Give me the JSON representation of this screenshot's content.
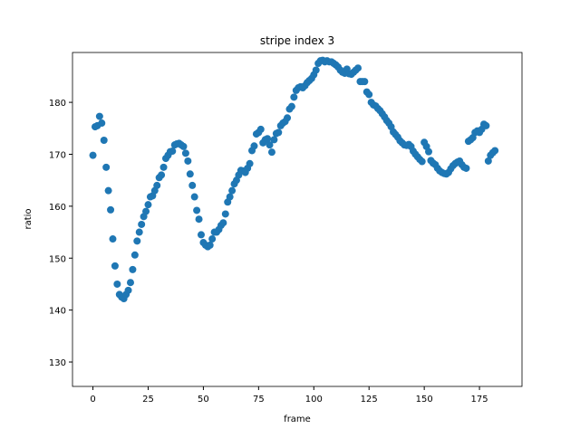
{
  "chart_data": {
    "type": "scatter",
    "title": "stripe index 3",
    "x_label": "frame",
    "y_label": "ratio",
    "series": [
      {
        "color": "#1f77b4",
        "x": [
          0,
          1,
          2,
          3,
          4,
          5,
          6,
          7,
          8,
          9,
          10,
          11,
          12,
          13,
          14,
          15,
          16,
          17,
          18,
          19,
          20,
          21,
          22,
          23,
          24,
          25,
          26,
          27,
          28,
          29,
          30,
          31,
          32,
          33,
          34,
          35,
          36,
          37,
          38,
          39,
          40,
          41,
          42,
          43,
          44,
          45,
          46,
          47,
          48,
          49,
          50,
          51,
          52,
          53,
          54,
          55,
          56,
          57,
          58,
          59,
          60,
          61,
          62,
          63,
          64,
          65,
          66,
          67,
          68,
          69,
          70,
          71,
          72,
          73,
          74,
          75,
          76,
          77,
          78,
          79,
          80,
          81,
          82,
          83,
          84,
          85,
          86,
          87,
          88,
          89,
          90,
          91,
          92,
          93,
          94,
          95,
          96,
          97,
          98,
          99,
          100,
          101,
          102,
          103,
          104,
          105,
          106,
          107,
          108,
          109,
          110,
          111,
          112,
          113,
          114,
          115,
          116,
          117,
          118,
          119,
          120,
          121,
          122,
          123,
          124,
          125,
          126,
          127,
          128,
          129,
          130,
          131,
          132,
          133,
          134,
          135,
          136,
          137,
          138,
          139,
          140,
          141,
          142,
          143,
          144,
          145,
          146,
          147,
          148,
          149,
          150,
          151,
          152,
          153,
          154,
          155,
          156,
          157,
          158,
          159,
          160,
          161,
          162,
          163,
          164,
          165,
          166,
          167,
          168,
          169,
          170,
          171,
          172,
          173,
          174,
          175,
          176,
          177,
          178,
          179,
          180,
          181,
          182
        ],
        "values": [
          169.8,
          175.3,
          175.5,
          177.3,
          176,
          172.7,
          167.5,
          163,
          159.3,
          153.7,
          148.5,
          145,
          143,
          142.5,
          142.2,
          143,
          143.8,
          145.3,
          147.8,
          150.6,
          153.3,
          155,
          156.5,
          158,
          159,
          160.3,
          161.8,
          162,
          163,
          164,
          165.5,
          166,
          167.5,
          169.2,
          169.8,
          170.5,
          170.6,
          171.8,
          172,
          172.1,
          171.8,
          171.5,
          170.2,
          168.7,
          166.2,
          164,
          161.8,
          159.2,
          157.5,
          154.5,
          153,
          152.5,
          152.2,
          152.5,
          153.7,
          155,
          155,
          155.5,
          156.3,
          156.8,
          158.5,
          160.8,
          161.8,
          163,
          164.3,
          165,
          166,
          166.9,
          166.8,
          166.5,
          167.3,
          168.2,
          170.7,
          171.6,
          173.9,
          174.2,
          174.8,
          172.2,
          172.8,
          173,
          171.8,
          170.4,
          172.8,
          174,
          174.2,
          175.5,
          176,
          176.3,
          177,
          178.7,
          179.2,
          181,
          182.3,
          182.8,
          183,
          182.8,
          183.2,
          183.8,
          184.2,
          184.6,
          185.3,
          186.2,
          187.5,
          188,
          188.1,
          187.8,
          188,
          187.8,
          187.8,
          187.5,
          187.2,
          186.8,
          186.2,
          185.8,
          185.6,
          186.4,
          185.5,
          185.4,
          185.8,
          186.2,
          186.6,
          184,
          184,
          184,
          182,
          181.5,
          180,
          179.5,
          179.3,
          178.8,
          178.4,
          177.8,
          177.2,
          176.5,
          176,
          175.3,
          174.3,
          173.8,
          173.3,
          172.6,
          172.2,
          171.8,
          171.7,
          171.9,
          171.5,
          170.6,
          170,
          169.5,
          169,
          168.6,
          172.3,
          171.5,
          170.5,
          168.8,
          168.3,
          168,
          167.3,
          166.8,
          166.5,
          166.3,
          166.2,
          166.5,
          167.2,
          167.8,
          168.2,
          168.5,
          168.7,
          168,
          167.5,
          167.3,
          172.5,
          172.8,
          173.2,
          174.2,
          174.5,
          174.2,
          174.8,
          175.8,
          175.5,
          168.7,
          169.8,
          170.3,
          170.7
        ]
      }
    ],
    "xlim": [
      -9.25,
      194.25
    ],
    "xticks": [
      0,
      25,
      50,
      75,
      100,
      125,
      150,
      175
    ],
    "ylim": [
      125.3,
      189.6
    ],
    "yticks": [
      130,
      140,
      150,
      160,
      170,
      180
    ]
  }
}
